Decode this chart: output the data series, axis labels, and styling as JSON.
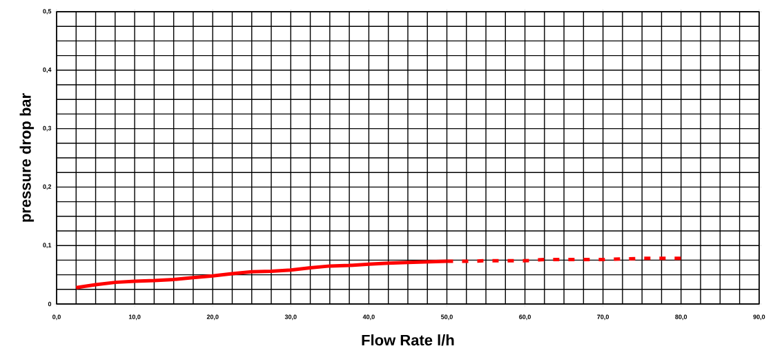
{
  "chart_data": {
    "type": "line",
    "xlabel": "Flow Rate l/h",
    "ylabel": "pressure drop bar",
    "xlim": [
      0,
      90
    ],
    "ylim": [
      0,
      0.5
    ],
    "xticks": [
      {
        "value": 0,
        "label": "0,0"
      },
      {
        "value": 10,
        "label": "10,0"
      },
      {
        "value": 20,
        "label": "20,0"
      },
      {
        "value": 30,
        "label": "30,0"
      },
      {
        "value": 40,
        "label": "40,0"
      },
      {
        "value": 50,
        "label": "50,0"
      },
      {
        "value": 60,
        "label": "60,0"
      },
      {
        "value": 70,
        "label": "70,0"
      },
      {
        "value": 80,
        "label": "80,0"
      },
      {
        "value": 90,
        "label": "90,0"
      }
    ],
    "yticks": [
      0,
      {
        "value": 0.1,
        "label": "0,1"
      },
      {
        "value": 0.2,
        "label": "0,2"
      },
      {
        "value": 0.3,
        "label": "0,3"
      },
      {
        "value": 0.4,
        "label": "0,4"
      },
      {
        "value": 0.5,
        "label": "0,5"
      }
    ],
    "grid": true,
    "marker": "none",
    "series": [
      {
        "color": "#ff0000",
        "line_style": "solid",
        "x": [
          2.5,
          5,
          7.5,
          10,
          12.5,
          15,
          17.5,
          20,
          22.5,
          25,
          27.5,
          30,
          32.5,
          35,
          37.5,
          40,
          42.5,
          45,
          47.5,
          50
        ],
        "values": [
          0.028,
          0.033,
          0.037,
          0.039,
          0.04,
          0.042,
          0.045,
          0.048,
          0.052,
          0.055,
          0.056,
          0.058,
          0.062,
          0.065,
          0.066,
          0.068,
          0.07,
          0.071,
          0.072,
          0.073
        ]
      },
      {
        "color": "#ff0000",
        "line_style": "dashed",
        "x": [
          50,
          52.5,
          55,
          57.5,
          60,
          62.5,
          65,
          67.5,
          70,
          72.5,
          75,
          77.5,
          80
        ],
        "values": [
          0.073,
          0.073,
          0.074,
          0.074,
          0.074,
          0.076,
          0.076,
          0.076,
          0.076,
          0.077,
          0.078,
          0.078,
          0.078
        ]
      }
    ]
  }
}
